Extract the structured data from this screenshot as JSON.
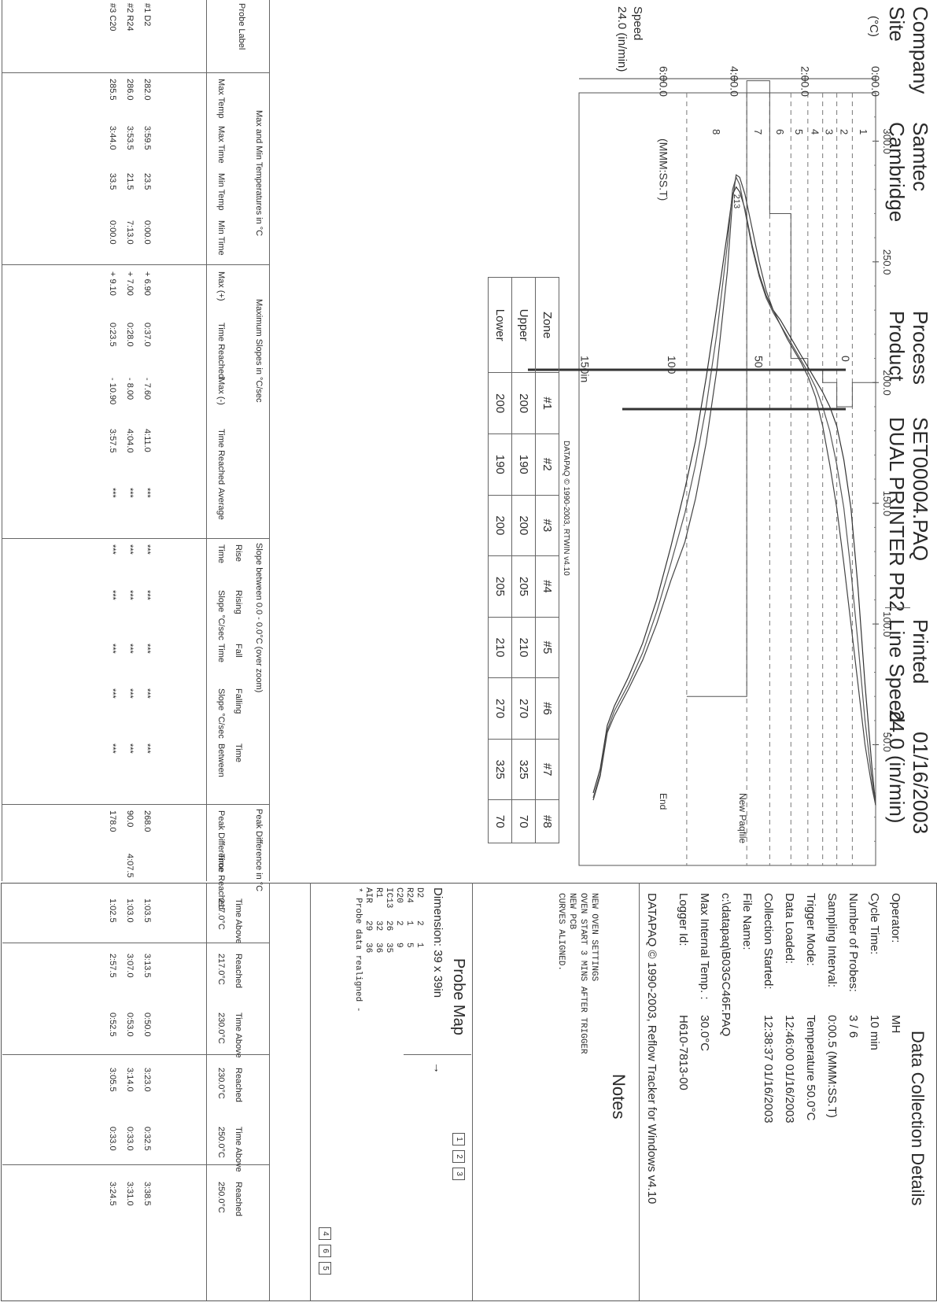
{
  "header": {
    "company_label": "Company",
    "company_value": "Samtec",
    "site_label": "Site",
    "site_value": "Cambridge",
    "process_label": "Process",
    "process_value": "SET00004.PAQ",
    "product_label": "Product",
    "product_value": "DUAL PRINTER PR2",
    "printed_label": "Printed",
    "printed_value": "01/16/2003",
    "line_speed_label": "Line Speed",
    "line_speed_value": "24.0 (in/min)"
  },
  "chart_data": {
    "type": "line",
    "ylabel": "(°C)",
    "xlabel": "(MMM:SS.T)",
    "ylim": [
      0,
      320
    ],
    "xlim": [
      0,
      8.4
    ],
    "y_ticks": [
      "300.0",
      "250.0",
      "200.0",
      "150.0",
      "100.0",
      "50.0"
    ],
    "y_tick_values": [
      300,
      250,
      200,
      150,
      100,
      50
    ],
    "x_ticks": [
      "0:00.0",
      "2:00.0",
      "4:00.0",
      "6:00.0"
    ],
    "x_tick_values": [
      0,
      2,
      4,
      6
    ],
    "zone_labels": [
      "1",
      "2",
      "3",
      "4",
      "5",
      "6",
      "7",
      "8"
    ],
    "zone_boundaries": [
      0,
      0.66,
      1.1,
      1.5,
      1.92,
      2.4,
      3.0,
      3.65,
      5.35
    ],
    "zone_upper_setpoints": [
      200,
      190,
      200,
      205,
      210,
      270,
      325,
      70
    ],
    "annotation_new_paqfile": "New Paqfile",
    "annotation_end": "End",
    "series": [
      {
        "name": "1",
        "x": [
          0,
          0.1,
          0.3,
          0.5,
          0.7,
          0.9,
          1.1,
          1.3,
          1.5,
          1.7,
          1.9,
          2.1,
          2.3,
          2.5,
          2.7,
          2.9,
          3.1,
          3.3,
          3.5,
          3.7,
          3.85,
          3.95,
          4.05,
          4.2,
          4.5,
          4.8,
          5.1,
          5.4,
          5.8,
          6.2,
          6.6,
          7.0,
          7.4,
          7.6,
          7.8,
          8.0
        ],
        "y": [
          25,
          40,
          75,
          115,
          148,
          168,
          182,
          190,
          196,
          201,
          206,
          211,
          216,
          221,
          226,
          230,
          236,
          245,
          257,
          272,
          279,
          281,
          278,
          262,
          231,
          202,
          176,
          156,
          132,
          110,
          92,
          78,
          66,
          58,
          40,
          30
        ]
      },
      {
        "name": "2",
        "x": [
          0,
          0.1,
          0.3,
          0.5,
          0.7,
          0.9,
          1.1,
          1.3,
          1.5,
          1.7,
          1.9,
          2.1,
          2.3,
          2.5,
          2.7,
          2.9,
          3.1,
          3.3,
          3.5,
          3.7,
          3.85,
          3.95,
          4.05,
          4.2,
          4.5,
          4.8,
          5.1,
          5.4,
          5.8,
          6.2,
          6.6,
          7.0,
          7.4,
          7.6,
          7.8,
          8.0
        ],
        "y": [
          25,
          35,
          60,
          92,
          122,
          148,
          166,
          180,
          190,
          198,
          204,
          209,
          214,
          219,
          224,
          229,
          235,
          244,
          256,
          271,
          282,
          285,
          280,
          257,
          220,
          190,
          166,
          146,
          125,
          105,
          88,
          75,
          64,
          56,
          38,
          28
        ]
      },
      {
        "name": "3",
        "x": [
          0,
          0.1,
          0.3,
          0.5,
          0.7,
          0.9,
          1.1,
          1.3,
          1.5,
          1.7,
          1.9,
          2.1,
          2.3,
          2.5,
          2.7,
          2.9,
          3.1,
          3.3,
          3.5,
          3.7,
          3.85,
          3.95,
          4.05,
          4.2,
          4.5,
          4.8,
          5.1,
          5.4,
          5.8,
          6.2,
          6.6,
          7.0,
          7.4,
          7.6,
          7.8,
          8.0
        ],
        "y": [
          25,
          32,
          50,
          75,
          100,
          125,
          148,
          166,
          182,
          194,
          202,
          208,
          213,
          218,
          224,
          230,
          238,
          250,
          264,
          278,
          285,
          286,
          276,
          246,
          205,
          175,
          152,
          134,
          118,
          100,
          85,
          73,
          62,
          55,
          37,
          27
        ]
      }
    ]
  },
  "credit_chart": "DATAPAQ © 1990-2003, RTWIN v4.10",
  "speed_scale": {
    "ticks": [
      "0",
      "50",
      "100",
      "150in"
    ],
    "tick_values": [
      0,
      50,
      100,
      150
    ],
    "max": 185,
    "speed_label": "Speed",
    "speed_value": "24.0 (in/min)"
  },
  "zones": {
    "header": [
      "Zone",
      "#1",
      "#2",
      "#3",
      "#4",
      "#5",
      "#6",
      "#7",
      "#8"
    ],
    "upper": [
      "Upper",
      "200",
      "190",
      "200",
      "205",
      "210",
      "270",
      "325",
      "70"
    ],
    "lower": [
      "Lower",
      "200",
      "190",
      "200",
      "205",
      "210",
      "270",
      "325",
      "70"
    ]
  },
  "details": {
    "title": "Data Collection Details",
    "rows": [
      {
        "label": "Operator:",
        "value": "MH"
      },
      {
        "label": "Cycle Time:",
        "value": "10 min"
      },
      {
        "label": "Number of Probes:",
        "value": "3 / 6"
      },
      {
        "label": "Sampling Interval:",
        "value": "0:00.5 (MMM:SS.T)"
      },
      {
        "label": "Trigger Mode:",
        "value": "Temperature  50.0°C"
      },
      {
        "label": "Data Loaded:",
        "value": "12:46:00  01/16/2003"
      },
      {
        "label": "Collection Started:",
        "value": "12:38:37  01/16/2003"
      },
      {
        "label": "File Name:",
        "value": ""
      },
      {
        "label": "c:\\datapaq\\B03GC46F.PAQ",
        "value": ""
      },
      {
        "label": "Max Internal Temp. :",
        "value": "30.0°C"
      },
      {
        "label": "Logger Id:",
        "value": "H610-7813-00"
      }
    ],
    "credit": "DATAPAQ © 1990-2003, Reflow Tracker for Windows v4.10"
  },
  "notes": {
    "title": "Notes",
    "lines": [
      "NEW OVEN SETTINGS",
      "OVEN START 3 MINS AFTER TRIGGER",
      "NEW PCB",
      "CURVES ALIGNED."
    ]
  },
  "probe_map": {
    "title": "Probe Map",
    "dimension": "Dimension: 39 x 39in",
    "arrow": "→",
    "rows": [
      [
        "D2",
        "2",
        "1"
      ],
      [
        "R24",
        "1",
        "5"
      ],
      [
        "C20",
        "2",
        "9"
      ],
      [
        "IC13",
        "26",
        "35"
      ],
      [
        "R1",
        "32",
        "36"
      ],
      [
        "AIR",
        "29",
        "36"
      ]
    ],
    "note": "* Probe data realigned -",
    "boxes_left": [
      "1",
      "2",
      "3"
    ],
    "boxes_right": [
      "4",
      "6",
      "5"
    ]
  },
  "results": {
    "probe_label_header": "Probe Label",
    "groups": {
      "maxmin": "Max and Min Temperatures in °C",
      "slopes": "Maximum Slopes in °C/sec",
      "slope_between": "Slope between  0.0 - 0.0°C (over zoom)",
      "peak_diff": "Peak Difference in °C"
    },
    "headers": {
      "max_temp": "Max Temp",
      "max_time": "Max Time",
      "min_temp": "Min Temp",
      "min_time": "Min Time",
      "max_plus": "Max (+)",
      "time_reached_plus": "Time Reached",
      "max_minus": "Max (-)",
      "time_reached_minus": "Time Reached",
      "average": "Average",
      "rise_top": "Rise",
      "rise": "Time",
      "rising_top": "Rising",
      "rising": "Slope °C/sec",
      "fall_top": "Fall",
      "fall": "Time",
      "falling_top": "Falling",
      "falling": "Slope °C/sec",
      "between_top": "Time",
      "between": "Between",
      "peak_difference": "Peak Difference",
      "peak_time_reached": "Time Reached",
      "ta1_top": "Time Above",
      "ta1": "217.0°C",
      "r1_top": "Reached",
      "r1": "217.0°C",
      "ta2_top": "Time Above",
      "ta2": "230.0°C",
      "r2_top": "Reached",
      "r2": "230.0°C",
      "ta3_top": "Time Above",
      "ta3": "250.0°C",
      "r3_top": "Reached",
      "r3": "250.0°C"
    },
    "rows": [
      {
        "label": "#1  D2",
        "max_temp": "282.0",
        "max_time": "3:59.5",
        "min_temp": "23.5",
        "min_time": "0:00.0",
        "max_plus": "+ 6.90",
        "time_plus": "0:37.0",
        "max_minus": "- 7.60",
        "time_minus": "4:11.0",
        "average": "***",
        "rise": "***",
        "rising": "***",
        "fall": "***",
        "falling": "***",
        "between": "***",
        "peak_diff": "268.0",
        "peak_time": "",
        "ta1": "1:03.5",
        "r1": "3:13.5",
        "ta2": "0:50.0",
        "r2": "3:23.0",
        "ta3": "0:32.5",
        "r3": "3:38.5"
      },
      {
        "label": "#2  R24",
        "max_temp": "286.0",
        "max_time": "3:53.5",
        "min_temp": "21.5",
        "min_time": "7:13.0",
        "max_plus": "+ 7.00",
        "time_plus": "0:28.0",
        "max_minus": "- 8.00",
        "time_minus": "4:04.0",
        "average": "***",
        "rise": "***",
        "rising": "***",
        "fall": "***",
        "falling": "***",
        "between": "***",
        "peak_diff": "90.0",
        "peak_time": "4:07.5",
        "ta1": "1:03.0",
        "r1": "3:07.0",
        "ta2": "0:53.0",
        "r2": "3:14.0",
        "ta3": "0:33.0",
        "r3": "3:31.0"
      },
      {
        "label": "#3  C20",
        "max_temp": "285.5",
        "max_time": "3:44.0",
        "min_temp": "33.5",
        "min_time": "0:00.0",
        "max_plus": "+ 9.10",
        "time_plus": "0:23.5",
        "max_minus": "- 10.90",
        "time_minus": "3:57.5",
        "average": "***",
        "rise": "***",
        "rising": "***",
        "fall": "***",
        "falling": "***",
        "between": "***",
        "peak_diff": "178.0",
        "peak_time": "",
        "ta1": "1:02.5",
        "r1": "2:57.5",
        "ta2": "0:52.5",
        "r2": "3:05.5",
        "ta3": "0:33.0",
        "r3": "3:24.5"
      }
    ]
  }
}
